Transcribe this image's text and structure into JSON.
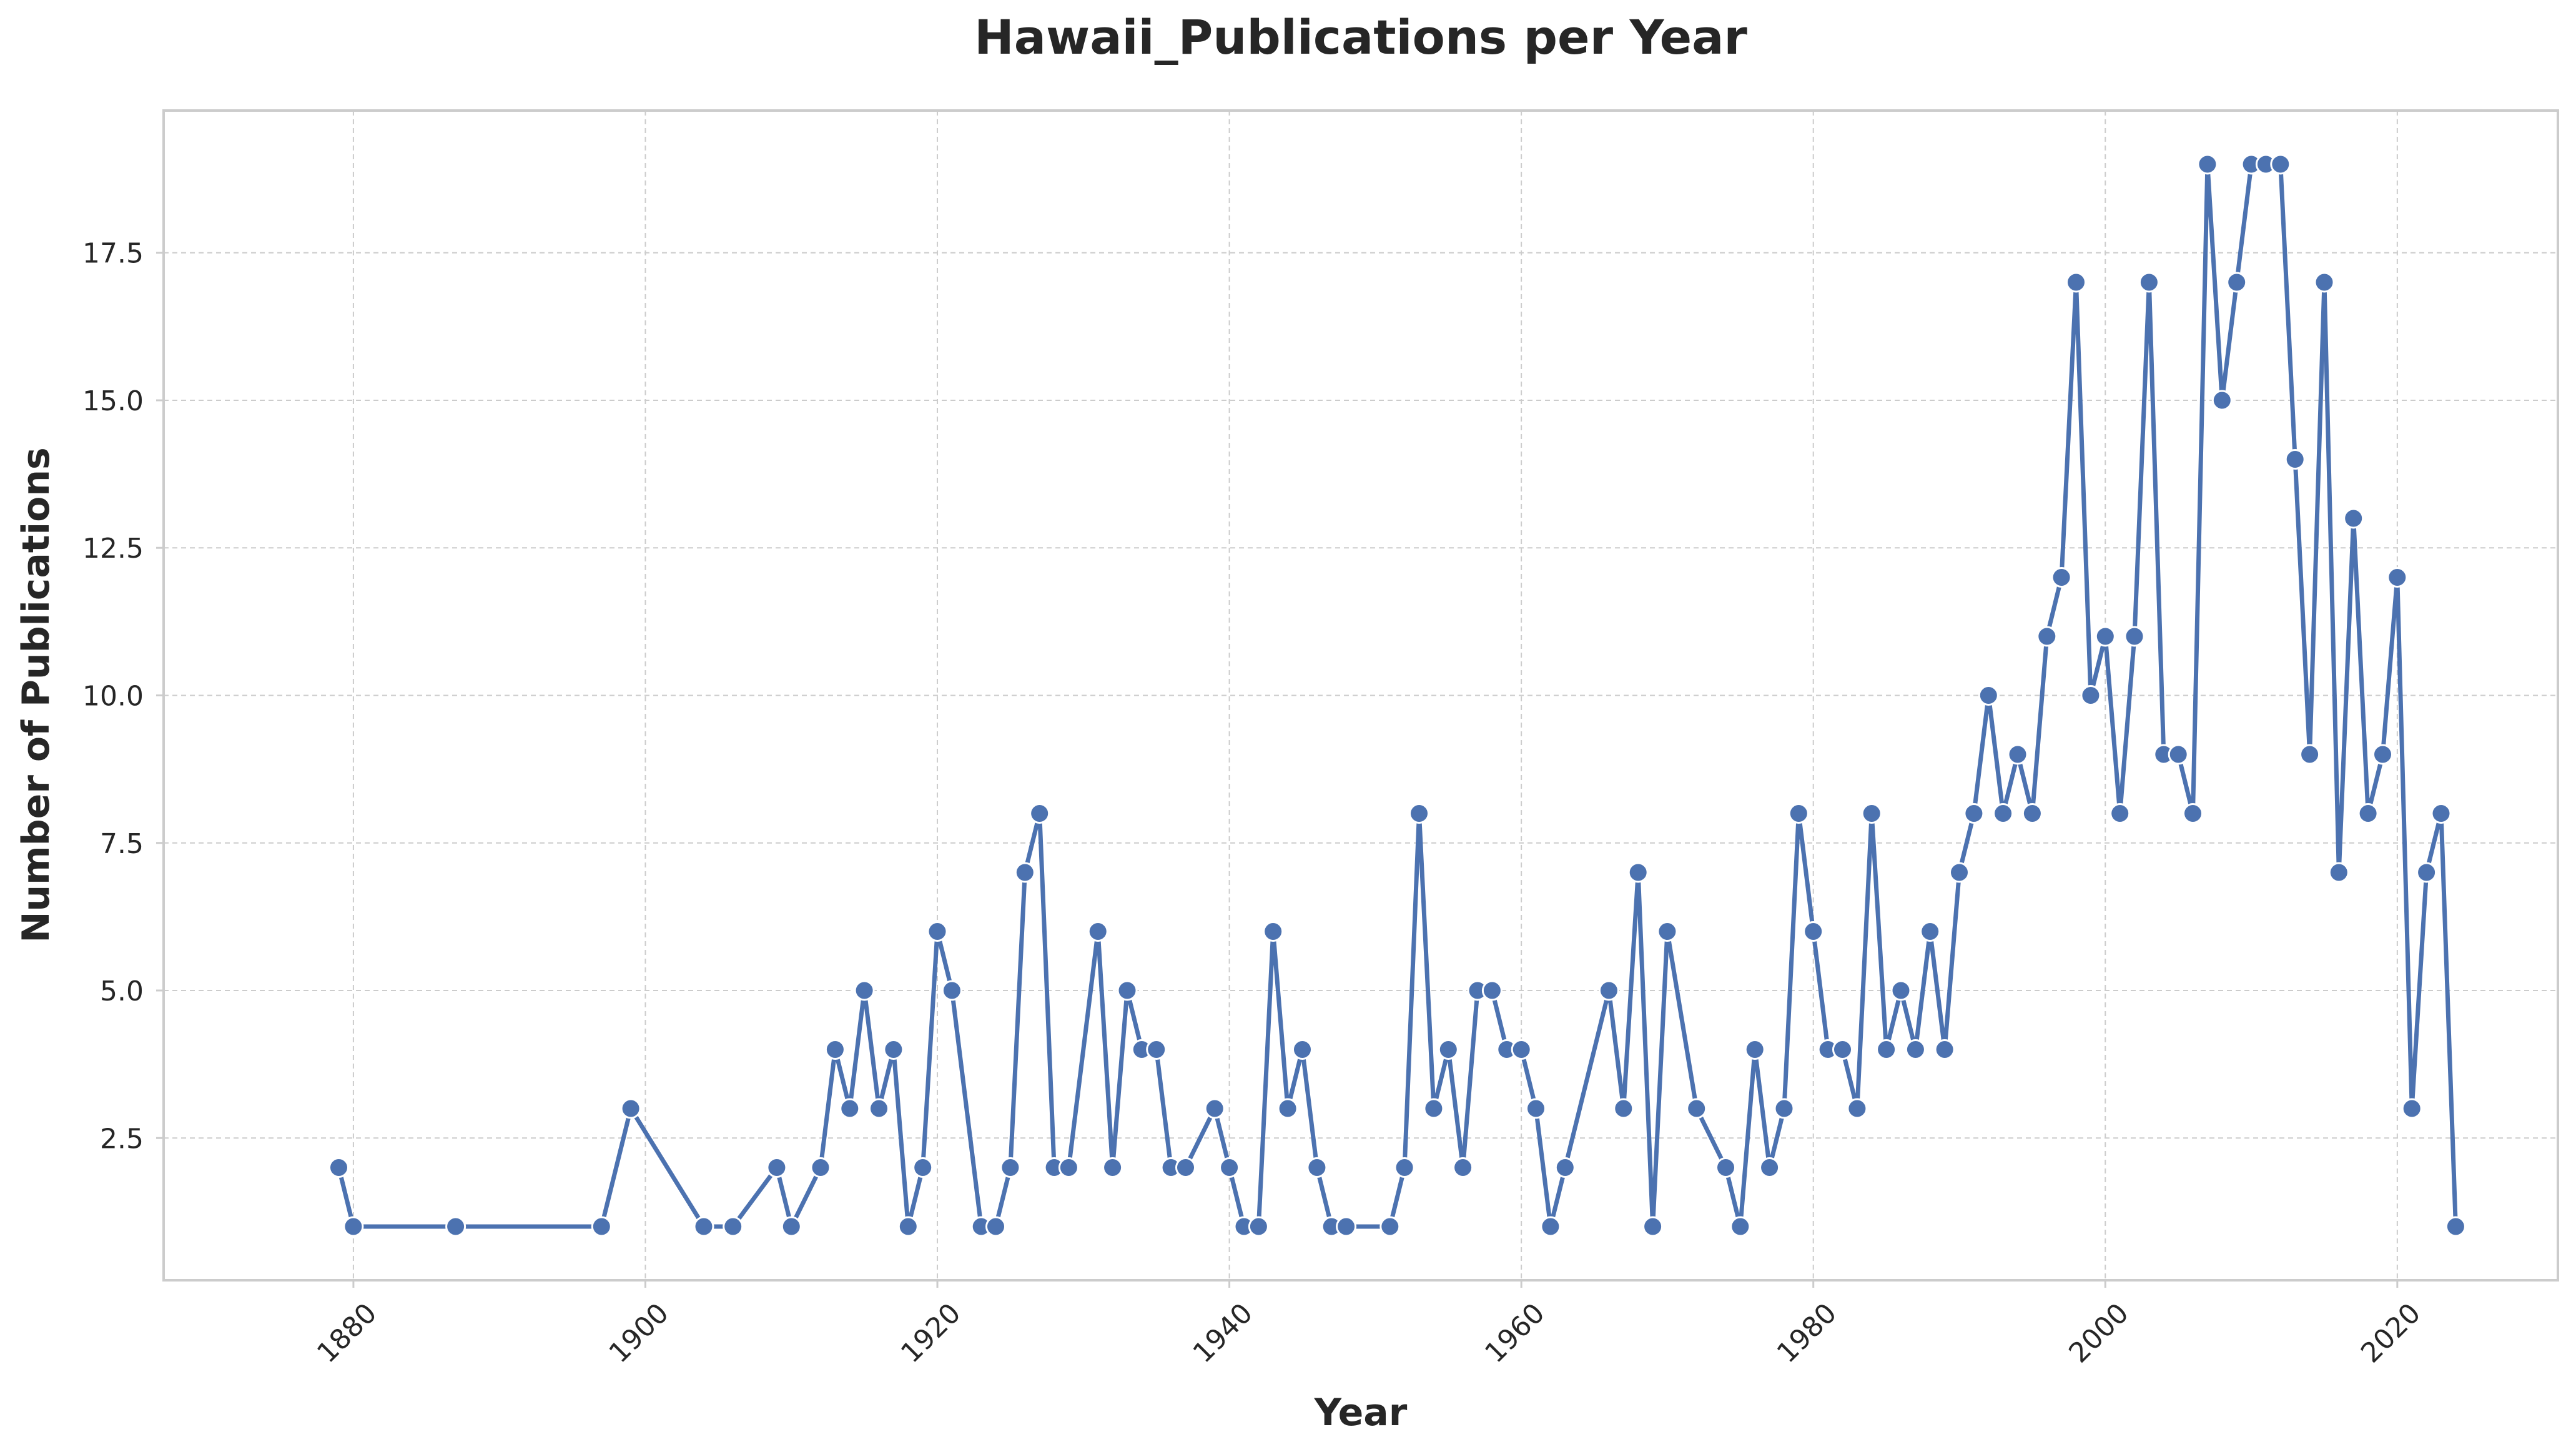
{
  "chart_data": {
    "type": "line",
    "title": "Hawaii_Publications per Year",
    "xlabel": "Year",
    "ylabel": "Number of Publications",
    "xlim": [
      1867,
      2031
    ],
    "ylim": [
      0.09,
      19.91
    ],
    "x_ticks": [
      1880,
      1900,
      1920,
      1940,
      1960,
      1980,
      2000,
      2020
    ],
    "y_ticks": [
      2.5,
      5.0,
      7.5,
      10.0,
      12.5,
      15.0,
      17.5
    ],
    "y_tick_labels": [
      "2.5",
      "5.0",
      "7.5",
      "10.0",
      "12.5",
      "15.0",
      "17.5"
    ],
    "grid": true,
    "colors": {
      "line": "#4c72b0",
      "marker_edge": "#ffffff",
      "grid": "#cccccc",
      "frame": "#cccccc",
      "text": "#262626"
    },
    "series": [
      {
        "x": [
          1879,
          1880,
          1887,
          1897,
          1899,
          1904,
          1906,
          1909,
          1910,
          1912,
          1913,
          1914,
          1915,
          1916,
          1917,
          1918,
          1919,
          1920,
          1921,
          1923,
          1924,
          1925,
          1926,
          1927,
          1928,
          1929,
          1931,
          1932,
          1933,
          1934,
          1935,
          1936,
          1937,
          1939,
          1940,
          1941,
          1942,
          1943,
          1944,
          1945,
          1946,
          1947,
          1948,
          1951,
          1952,
          1953,
          1954,
          1955,
          1956,
          1957,
          1958,
          1959,
          1960,
          1961,
          1962,
          1963,
          1966,
          1967,
          1968,
          1969,
          1970,
          1972,
          1974,
          1975,
          1976,
          1977,
          1978,
          1979,
          1980,
          1981,
          1982,
          1983,
          1984,
          1985,
          1986,
          1987,
          1988,
          1989,
          1990,
          1991,
          1992,
          1993,
          1994,
          1995,
          1996,
          1997,
          1998,
          1999,
          2000,
          2001,
          2002,
          2003,
          2004,
          2005,
          2006,
          2007,
          2008,
          2009,
          2010,
          2011,
          2012,
          2013,
          2014,
          2015,
          2016,
          2017,
          2018,
          2019,
          2020,
          2021,
          2022,
          2023,
          2024
        ],
        "y": [
          2,
          1,
          1,
          1,
          3,
          1,
          1,
          2,
          1,
          2,
          4,
          3,
          5,
          3,
          4,
          1,
          2,
          6,
          5,
          1,
          1,
          2,
          7,
          8,
          2,
          2,
          6,
          2,
          5,
          4,
          4,
          2,
          2,
          3,
          2,
          1,
          1,
          6,
          3,
          4,
          2,
          1,
          1,
          1,
          2,
          8,
          3,
          4,
          2,
          5,
          5,
          4,
          4,
          3,
          1,
          2,
          5,
          3,
          7,
          1,
          6,
          3,
          2,
          1,
          4,
          2,
          3,
          8,
          6,
          4,
          4,
          3,
          8,
          4,
          5,
          4,
          6,
          4,
          7,
          8,
          10,
          8,
          9,
          8,
          11,
          12,
          17,
          10,
          11,
          8,
          11,
          17,
          9,
          9,
          8,
          19,
          15,
          17,
          19,
          19,
          19,
          14,
          9,
          17,
          7,
          13,
          8,
          9,
          12,
          3,
          7,
          8,
          1
        ]
      }
    ]
  }
}
